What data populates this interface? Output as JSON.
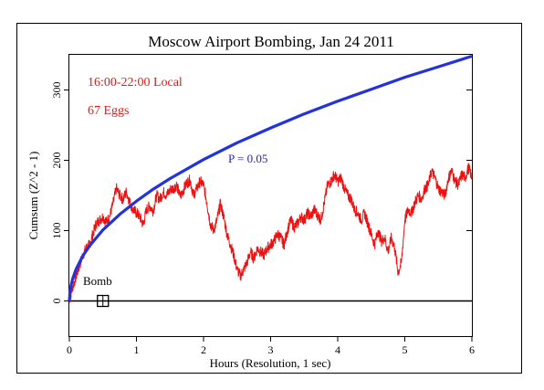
{
  "chart_data": {
    "type": "line",
    "title": "Moscow Airport Bombing, Jan 24 2011",
    "xlabel": "Hours (Resolution, 1 sec)",
    "ylabel": "Cumsum (Z^2 - 1)",
    "xlim": [
      0,
      6
    ],
    "ylim": [
      -50,
      350
    ],
    "x_ticks": [
      "0",
      "1",
      "2",
      "3",
      "4",
      "5",
      "6"
    ],
    "y_ticks": [
      "0",
      "100",
      "200",
      "300"
    ],
    "grid": false,
    "annotations": {
      "time_window": "16:00-22:00 Local",
      "eggs": "67 Eggs",
      "p_label": "P = 0.05",
      "event_label": "Bomb"
    },
    "event_marker": {
      "label": "Bomb",
      "x": 0.5,
      "y": 0
    },
    "reference_line": {
      "y": 0
    },
    "series": [
      {
        "color": "#ee1111",
        "x": [
          0,
          0.05,
          0.1,
          0.15,
          0.2,
          0.25,
          0.3,
          0.35,
          0.4,
          0.45,
          0.5,
          0.55,
          0.6,
          0.65,
          0.7,
          0.75,
          0.8,
          0.85,
          0.9,
          0.95,
          1.0,
          1.05,
          1.1,
          1.15,
          1.2,
          1.25,
          1.3,
          1.35,
          1.4,
          1.45,
          1.5,
          1.55,
          1.6,
          1.65,
          1.7,
          1.75,
          1.8,
          1.85,
          1.9,
          1.95,
          2.0,
          2.05,
          2.1,
          2.15,
          2.2,
          2.25,
          2.3,
          2.35,
          2.4,
          2.45,
          2.5,
          2.55,
          2.6,
          2.65,
          2.7,
          2.75,
          2.8,
          2.85,
          2.9,
          2.95,
          3.0,
          3.05,
          3.1,
          3.15,
          3.2,
          3.25,
          3.3,
          3.35,
          3.4,
          3.45,
          3.5,
          3.55,
          3.6,
          3.65,
          3.7,
          3.75,
          3.8,
          3.85,
          3.9,
          3.95,
          4.0,
          4.05,
          4.1,
          4.15,
          4.2,
          4.25,
          4.3,
          4.35,
          4.4,
          4.45,
          4.5,
          4.55,
          4.6,
          4.65,
          4.7,
          4.75,
          4.8,
          4.85,
          4.9,
          4.95,
          5.0,
          5.05,
          5.1,
          5.15,
          5.2,
          5.25,
          5.3,
          5.35,
          5.4,
          5.45,
          5.5,
          5.55,
          5.6,
          5.65,
          5.7,
          5.75,
          5.8,
          5.85,
          5.9,
          5.95,
          6.0
        ],
        "values": [
          0,
          20,
          35,
          50,
          65,
          75,
          80,
          95,
          110,
          115,
          120,
          112,
          120,
          138,
          160,
          150,
          145,
          155,
          140,
          130,
          125,
          120,
          108,
          130,
          135,
          128,
          150,
          145,
          155,
          150,
          158,
          160,
          165,
          148,
          158,
          168,
          172,
          150,
          160,
          170,
          165,
          140,
          110,
          100,
          115,
          138,
          120,
          95,
          80,
          65,
          45,
          35,
          45,
          55,
          70,
          60,
          75,
          70,
          65,
          75,
          80,
          85,
          95,
          90,
          80,
          100,
          115,
          105,
          110,
          120,
          115,
          125,
          120,
          130,
          122,
          115,
          140,
          165,
          170,
          180,
          170,
          175,
          160,
          150,
          145,
          130,
          125,
          115,
          125,
          110,
          95,
          80,
          100,
          85,
          90,
          70,
          90,
          75,
          40,
          55,
          115,
          130,
          125,
          140,
          150,
          145,
          160,
          165,
          185,
          175,
          160,
          155,
          150,
          175,
          185,
          170,
          165,
          180,
          175,
          190,
          175
        ]
      },
      {
        "name": "P = 0.05",
        "color": "#2233dd",
        "x": [
          0,
          0.01,
          0.02,
          0.05,
          0.1,
          0.2,
          0.3,
          0.5,
          0.75,
          1.0,
          1.25,
          1.5,
          2.0,
          2.5,
          3.0,
          3.5,
          4.0,
          4.5,
          5.0,
          5.5,
          6.0
        ],
        "values": [
          0,
          14,
          20,
          32,
          45,
          64,
          78,
          101,
          123,
          142,
          159,
          174,
          201,
          225,
          246,
          266,
          284,
          301,
          318,
          333,
          348
        ]
      }
    ]
  }
}
